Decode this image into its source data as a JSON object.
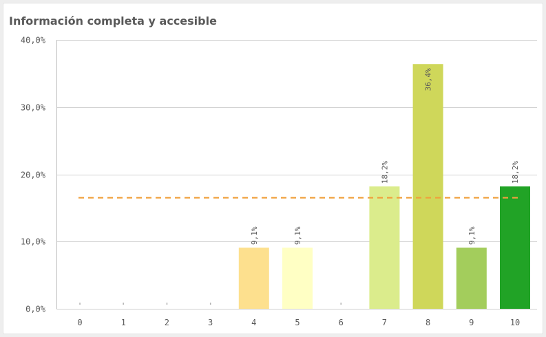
{
  "chart_data": {
    "type": "bar",
    "title": "Información completa y accesible",
    "categories": [
      "0",
      "1",
      "2",
      "3",
      "4",
      "5",
      "6",
      "7",
      "8",
      "9",
      "10"
    ],
    "values": [
      0,
      0,
      0,
      0,
      9.1,
      9.1,
      0,
      18.2,
      36.4,
      9.1,
      18.2
    ],
    "data_labels": [
      "",
      "",
      "",
      "",
      "9,1%",
      "9,1%",
      "",
      "18,2%",
      "36,4%",
      "9,1%",
      "18,2%"
    ],
    "bar_colors": [
      "#cccccc",
      "#cccccc",
      "#cccccc",
      "#cccccc",
      "#fde08e",
      "#ffffc4",
      "#cccccc",
      "#dbec8c",
      "#cfd75a",
      "#a3cd5c",
      "#21a326"
    ],
    "reference_line": {
      "value": 16.6,
      "color": "#f0a03c",
      "style": "dashed"
    },
    "yticks": [
      0,
      10,
      20,
      30,
      40
    ],
    "ytick_labels": [
      "0,0%",
      "10,0%",
      "20,0%",
      "30,0%",
      "40,0%"
    ],
    "ylim": [
      0,
      40
    ],
    "grid": true,
    "xlabel": "",
    "ylabel": ""
  }
}
